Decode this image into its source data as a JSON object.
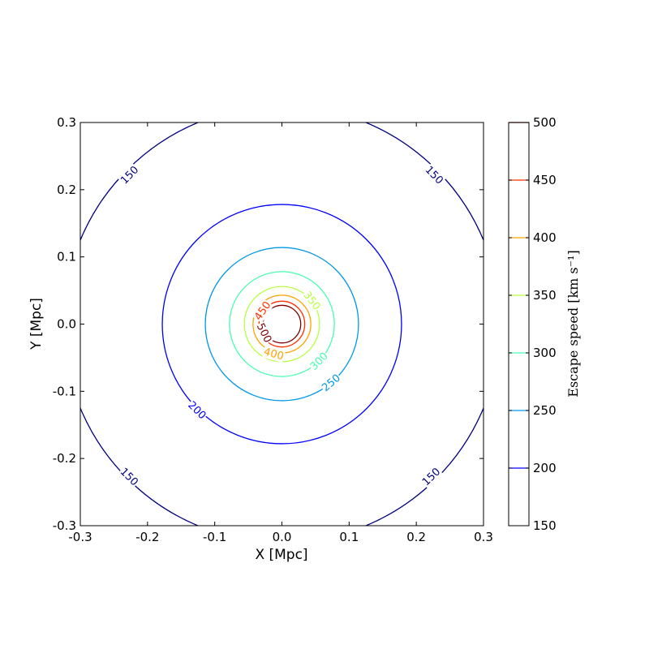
{
  "chart_data": {
    "type": "contour",
    "xlabel": "X [Mpc]",
    "ylabel": "Y [Mpc]",
    "xlim": [
      -0.3,
      0.3
    ],
    "ylim": [
      -0.3,
      0.3
    ],
    "x_ticks": [
      "-0.3",
      "-0.2",
      "-0.1",
      "0.0",
      "0.1",
      "0.2",
      "0.3"
    ],
    "y_ticks": [
      "-0.3",
      "-0.2",
      "-0.1",
      "0.0",
      "0.1",
      "0.2",
      "0.3"
    ],
    "grid": false,
    "center": [
      0.0,
      0.0
    ],
    "contours": [
      {
        "level": 150,
        "label": "150",
        "radius": 0.325,
        "color": "#00007f"
      },
      {
        "level": 200,
        "label": "200",
        "radius": 0.178,
        "color": "#0000ff"
      },
      {
        "level": 250,
        "label": "250",
        "radius": 0.114,
        "color": "#0099e8"
      },
      {
        "level": 300,
        "label": "300",
        "radius": 0.078,
        "color": "#46ffb0"
      },
      {
        "level": 350,
        "label": "350",
        "radius": 0.056,
        "color": "#b7ff3f"
      },
      {
        "level": 400,
        "label": "400",
        "radius": 0.043,
        "color": "#ffa200"
      },
      {
        "level": 450,
        "label": "450",
        "radius": 0.034,
        "color": "#ff3000"
      },
      {
        "level": 500,
        "label": "500",
        "radius": 0.028,
        "color": "#7f0000"
      }
    ],
    "contour_labels": [
      {
        "text": "150",
        "x": -0.227,
        "y": 0.222,
        "color": "#00007f"
      },
      {
        "text": "150",
        "x": 0.227,
        "y": 0.222,
        "color": "#00007f"
      },
      {
        "text": "150",
        "x": -0.227,
        "y": -0.227,
        "color": "#00007f"
      },
      {
        "text": "150",
        "x": 0.222,
        "y": -0.227,
        "color": "#00007f"
      },
      {
        "text": "200",
        "x": -0.126,
        "y": -0.128,
        "color": "#0000ff"
      },
      {
        "text": "250",
        "x": 0.073,
        "y": -0.087,
        "color": "#0099e8"
      },
      {
        "text": "300",
        "x": 0.055,
        "y": -0.055,
        "color": "#46ffb0"
      },
      {
        "text": "350",
        "x": 0.045,
        "y": 0.035,
        "color": "#b7ff3f"
      },
      {
        "text": "400",
        "x": -0.012,
        "y": -0.044,
        "color": "#ffa200"
      },
      {
        "text": "450",
        "x": -0.029,
        "y": 0.02,
        "color": "#ff3000"
      },
      {
        "text": "500",
        "x": -0.026,
        "y": -0.013,
        "color": "#7f0000"
      }
    ],
    "colorbar": {
      "label": "Escape speed [km s⁻¹]",
      "range": [
        150,
        500
      ],
      "ticks": [
        "150",
        "200",
        "250",
        "300",
        "350",
        "400",
        "450",
        "500"
      ],
      "levels": [
        {
          "level": 200,
          "color": "#0000ff"
        },
        {
          "level": 250,
          "color": "#0099e8"
        },
        {
          "level": 300,
          "color": "#46ffb0"
        },
        {
          "level": 350,
          "color": "#b7ff3f"
        },
        {
          "level": 400,
          "color": "#ffa200"
        },
        {
          "level": 450,
          "color": "#ff3000"
        },
        {
          "level": 500,
          "color": "#7f0000"
        }
      ]
    }
  }
}
